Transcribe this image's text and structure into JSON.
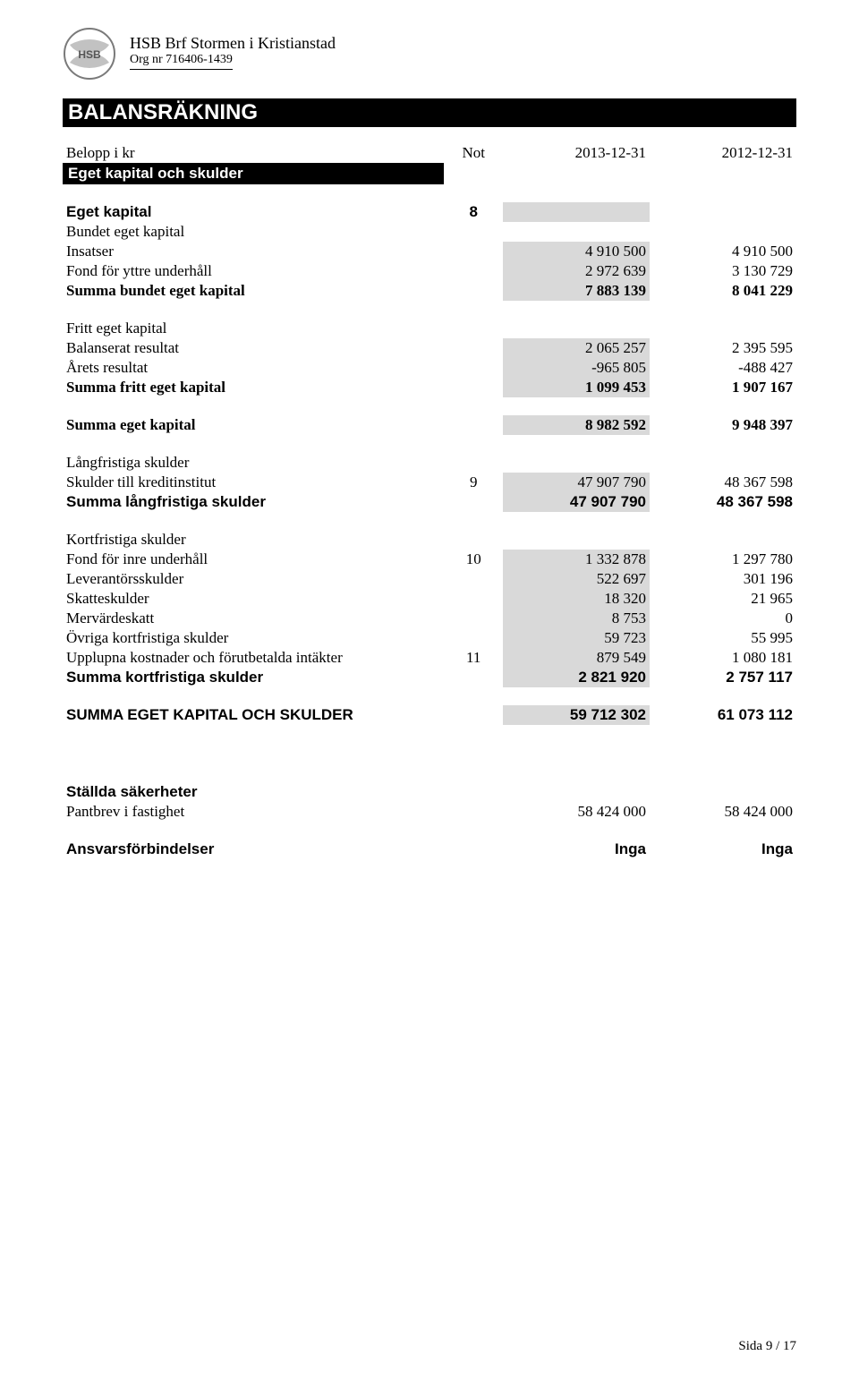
{
  "header": {
    "org_name": "HSB Brf Stormen i Kristianstad",
    "org_nr": "Org nr  716406-1439"
  },
  "title": "BALANSRÄKNING",
  "columns": {
    "label": "Belopp i kr",
    "note": "Not",
    "col1": "2013-12-31",
    "col2": "2012-12-31"
  },
  "section_bar": "Eget kapital och skulder",
  "groups": [
    {
      "heading": {
        "label": "Eget kapital",
        "note": "8",
        "bold": true,
        "shade_col1": true
      }
    },
    {
      "rows": [
        {
          "label": "Bundet eget kapital"
        },
        {
          "label": "Insatser",
          "col1": "4 910 500",
          "col2": "4 910 500",
          "shade_col1": true
        },
        {
          "label": "Fond för yttre underhåll",
          "col1": "2 972 639",
          "col2": "3 130 729",
          "shade_col1": true
        },
        {
          "label": "Summa bundet eget kapital",
          "col1": "7 883 139",
          "col2": "8 041 229",
          "shade_col1": true,
          "bold_times": true
        }
      ]
    },
    {
      "spacer": true
    },
    {
      "rows": [
        {
          "label": "Fritt eget kapital"
        },
        {
          "label": "Balanserat resultat",
          "col1": "2 065 257",
          "col2": "2 395 595",
          "shade_col1": true
        },
        {
          "label": "Årets resultat",
          "col1": "-965 805",
          "col2": "-488 427",
          "shade_col1": true
        },
        {
          "label": "Summa fritt eget kapital",
          "col1": "1 099 453",
          "col2": "1 907 167",
          "shade_col1": true,
          "bold_times": true
        }
      ]
    },
    {
      "spacer": true
    },
    {
      "rows": [
        {
          "label": "Summa eget kapital",
          "col1": "8 982 592",
          "col2": "9 948 397",
          "shade_col1": true,
          "bold_times": true
        }
      ]
    },
    {
      "spacer": true
    },
    {
      "rows": [
        {
          "label": "Långfristiga skulder"
        },
        {
          "label": "Skulder till kreditinstitut",
          "note": "9",
          "col1": "47 907 790",
          "col2": "48 367 598",
          "shade_col1": true
        },
        {
          "label": "Summa långfristiga skulder",
          "col1": "47 907 790",
          "col2": "48 367 598",
          "shade_col1": true,
          "bold": true
        }
      ]
    },
    {
      "spacer": true
    },
    {
      "rows": [
        {
          "label": "Kortfristiga skulder"
        },
        {
          "label": "Fond för inre underhåll",
          "note": "10",
          "col1": "1 332 878",
          "col2": "1 297 780",
          "shade_col1": true
        },
        {
          "label": "Leverantörsskulder",
          "col1": "522 697",
          "col2": "301 196",
          "shade_col1": true
        },
        {
          "label": "Skatteskulder",
          "col1": "18 320",
          "col2": "21 965",
          "shade_col1": true
        },
        {
          "label": "Mervärdeskatt",
          "col1": "8 753",
          "col2": "0",
          "shade_col1": true
        },
        {
          "label": "Övriga kortfristiga skulder",
          "col1": "59 723",
          "col2": "55 995",
          "shade_col1": true
        },
        {
          "label": "Upplupna kostnader och förutbetalda intäkter",
          "note": "11",
          "col1": "879 549",
          "col2": "1 080 181",
          "shade_col1": true
        },
        {
          "label": "Summa kortfristiga skulder",
          "col1": "2 821 920",
          "col2": "2 757 117",
          "shade_col1": true,
          "bold": true
        }
      ]
    },
    {
      "spacer": true
    },
    {
      "rows": [
        {
          "label": "SUMMA EGET KAPITAL OCH SKULDER",
          "col1": "59 712 302",
          "col2": "61 073 112",
          "shade_col1": true,
          "bold": true
        }
      ]
    },
    {
      "big_spacer": true
    },
    {
      "rows": [
        {
          "label": "Ställda säkerheter",
          "bold": true
        },
        {
          "label": "Pantbrev i fastighet",
          "col1": "58 424 000",
          "col2": "58 424 000"
        }
      ]
    },
    {
      "spacer": true
    },
    {
      "rows": [
        {
          "label": "Ansvarsförbindelser",
          "col1": "Inga",
          "col2": "Inga",
          "bold": true
        }
      ]
    }
  ],
  "page_num": "Sida 9 / 17",
  "style": {
    "shade_color": "#d9d9d9",
    "bar_bg": "#000000",
    "bar_fg": "#ffffff"
  }
}
